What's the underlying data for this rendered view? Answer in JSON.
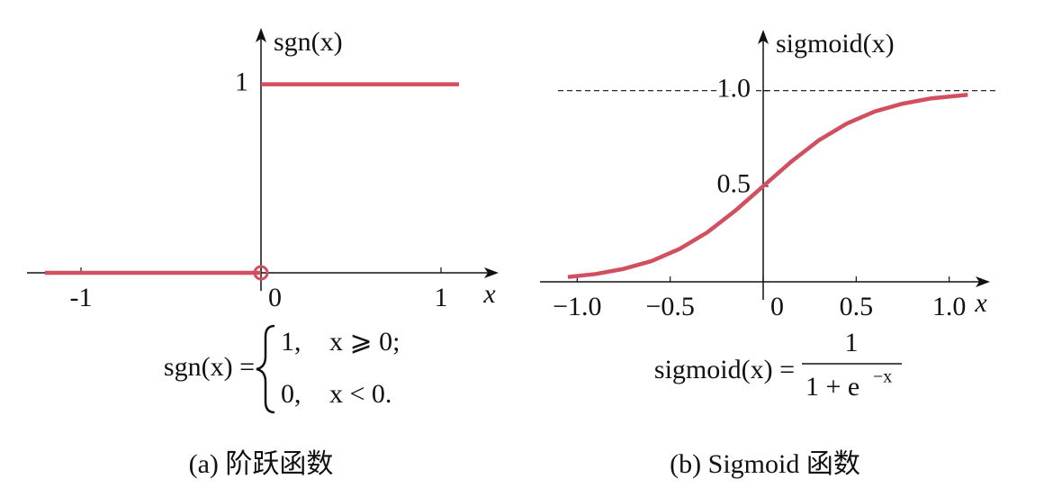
{
  "chart_data": [
    {
      "type": "line",
      "y_label": "sgn(x)",
      "x_label": "x",
      "xlim": [
        -1.3,
        1.3
      ],
      "ylim": [
        0,
        1.28
      ],
      "xticks": [
        -1,
        0,
        1
      ],
      "yticks": [
        1
      ],
      "series": [
        {
          "color": "#d0505f",
          "x": [
            -1.2,
            0,
            0,
            0,
            1.1
          ],
          "values": [
            0,
            0,
            null,
            1,
            1
          ]
        }
      ],
      "open_marker": {
        "x": 0,
        "y": 0
      },
      "formula": {
        "lhs": "sgn(x) =",
        "case1_value": "1,",
        "case1_cond": "x ⩾ 0;",
        "case2_value": "0,",
        "case2_cond": "x < 0."
      },
      "caption": "(a) 阶跃函数"
    },
    {
      "type": "line",
      "y_label": "sigmoid(x)",
      "x_label": "x",
      "xlim": [
        -1.2,
        1.2
      ],
      "ylim": [
        0,
        1.3
      ],
      "xticks": [
        {
          "value": -1,
          "label": "−1.0"
        },
        {
          "value": -0.5,
          "label": "−0.5"
        },
        0,
        {
          "value": 0.5,
          "label": "0.5"
        },
        {
          "value": 1,
          "label": "1.0"
        }
      ],
      "yticks": [
        {
          "value": 0.5,
          "label": "0.5"
        },
        {
          "value": 1,
          "label": "1.0"
        }
      ],
      "reference_line": 1,
      "series": [
        {
          "color": "#d0505f",
          "x": [
            -1.05,
            -0.9,
            -0.75,
            -0.6,
            -0.45,
            -0.3,
            -0.15,
            0,
            0.15,
            0.3,
            0.45,
            0.6,
            0.75,
            0.9,
            1.1
          ],
          "values": [
            0.025,
            0.041,
            0.068,
            0.109,
            0.172,
            0.259,
            0.372,
            0.5,
            0.628,
            0.741,
            0.828,
            0.891,
            0.932,
            0.959,
            0.979
          ]
        }
      ],
      "formula": {
        "lhs": "sigmoid(x) =",
        "numerator": "1",
        "denominator": "1 + e",
        "exponent": "−x"
      },
      "caption": "(b) Sigmoid 函数"
    }
  ]
}
